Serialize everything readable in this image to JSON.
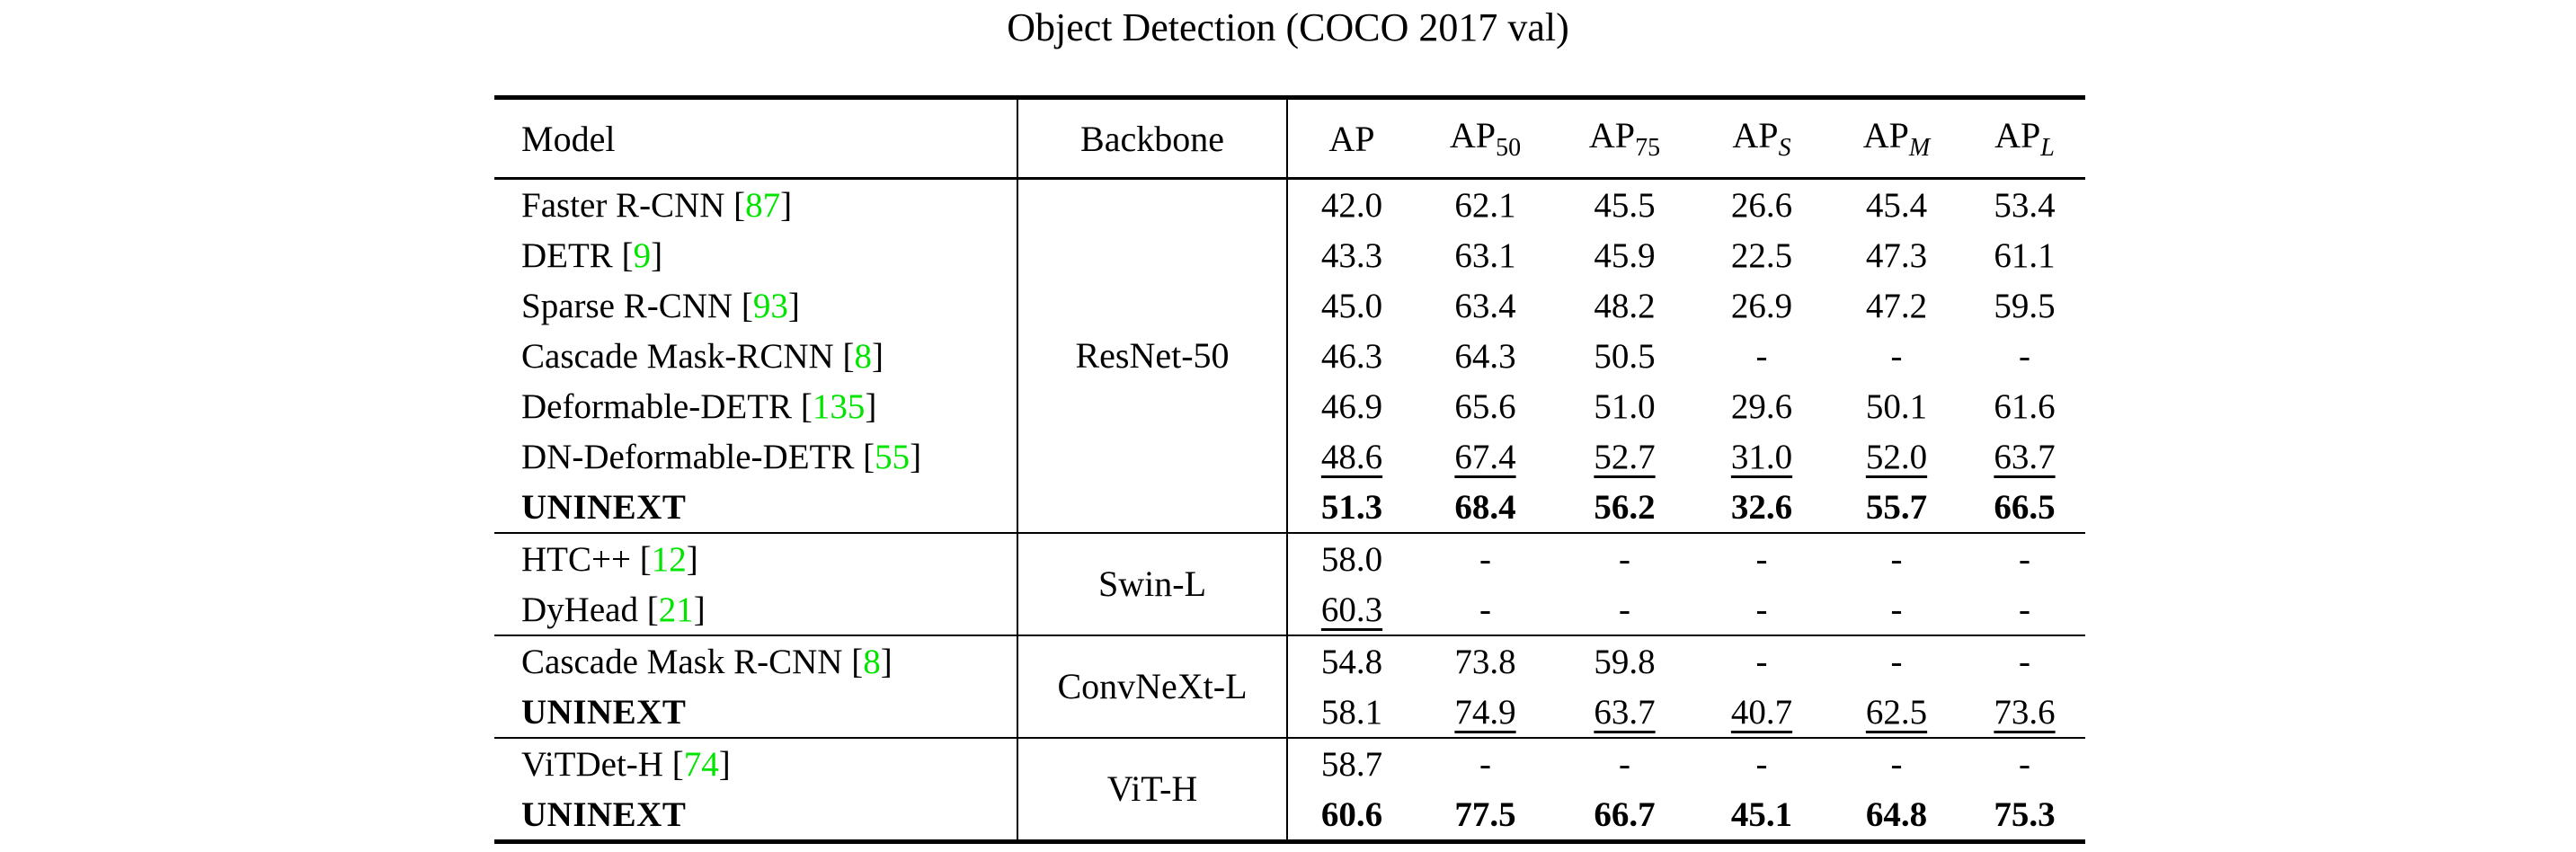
{
  "title": "Object Detection (COCO 2017 val)",
  "colors": {
    "citation_green": "#00E400",
    "text": "#000000",
    "background": "#ffffff"
  },
  "chart_data": {
    "type": "table",
    "title": "Object Detection (COCO 2017 val)",
    "columns": [
      "Model",
      "Backbone",
      "AP",
      "AP50",
      "AP75",
      "APS",
      "APM",
      "APL"
    ],
    "rows": [
      [
        "Faster R-CNN [87]",
        "ResNet-50",
        "42.0",
        "62.1",
        "45.5",
        "26.6",
        "45.4",
        "53.4"
      ],
      [
        "DETR [9]",
        "ResNet-50",
        "43.3",
        "63.1",
        "45.9",
        "22.5",
        "47.3",
        "61.1"
      ],
      [
        "Sparse R-CNN [93]",
        "ResNet-50",
        "45.0",
        "63.4",
        "48.2",
        "26.9",
        "47.2",
        "59.5"
      ],
      [
        "Cascade Mask-RCNN [8]",
        "ResNet-50",
        "46.3",
        "64.3",
        "50.5",
        "-",
        "-",
        "-"
      ],
      [
        "Deformable-DETR [135]",
        "ResNet-50",
        "46.9",
        "65.6",
        "51.0",
        "29.6",
        "50.1",
        "61.6"
      ],
      [
        "DN-Deformable-DETR [55]",
        "ResNet-50",
        "48.6",
        "67.4",
        "52.7",
        "31.0",
        "52.0",
        "63.7"
      ],
      [
        "UNINEXT",
        "ResNet-50",
        "51.3",
        "68.4",
        "56.2",
        "32.6",
        "55.7",
        "66.5"
      ],
      [
        "HTC++ [12]",
        "Swin-L",
        "58.0",
        "-",
        "-",
        "-",
        "-",
        "-"
      ],
      [
        "DyHead [21]",
        "Swin-L",
        "60.3",
        "-",
        "-",
        "-",
        "-",
        "-"
      ],
      [
        "Cascade Mask R-CNN [8]",
        "ConvNeXt-L",
        "54.8",
        "73.8",
        "59.8",
        "-",
        "-",
        "-"
      ],
      [
        "UNINEXT",
        "ConvNeXt-L",
        "58.1",
        "74.9",
        "63.7",
        "40.7",
        "62.5",
        "73.6"
      ],
      [
        "ViTDet-H [74]",
        "ViT-H",
        "58.7",
        "-",
        "-",
        "-",
        "-",
        "-"
      ],
      [
        "UNINEXT",
        "ViT-H",
        "60.6",
        "77.5",
        "66.7",
        "45.1",
        "64.8",
        "75.3"
      ]
    ]
  },
  "table": {
    "cite_brackets": [
      "[",
      "]"
    ],
    "headers": {
      "model": "Model",
      "backbone": "Backbone",
      "metrics": [
        {
          "base": "AP",
          "sub": "",
          "sub_style": "normal"
        },
        {
          "base": "AP",
          "sub": "50",
          "sub_style": "normal"
        },
        {
          "base": "AP",
          "sub": "75",
          "sub_style": "normal"
        },
        {
          "base": "AP",
          "sub": "S",
          "sub_style": "italic"
        },
        {
          "base": "AP",
          "sub": "M",
          "sub_style": "italic"
        },
        {
          "base": "AP",
          "sub": "L",
          "sub_style": "italic"
        }
      ]
    },
    "blocks": [
      {
        "backbone": "ResNet-50",
        "rows": [
          {
            "model": "Faster R-CNN",
            "cite": "87",
            "model_bold": false,
            "values": [
              {
                "t": "42.0",
                "s": "p"
              },
              {
                "t": "62.1",
                "s": "p"
              },
              {
                "t": "45.5",
                "s": "p"
              },
              {
                "t": "26.6",
                "s": "p"
              },
              {
                "t": "45.4",
                "s": "p"
              },
              {
                "t": "53.4",
                "s": "p"
              }
            ]
          },
          {
            "model": "DETR",
            "cite": "9",
            "model_bold": false,
            "values": [
              {
                "t": "43.3",
                "s": "p"
              },
              {
                "t": "63.1",
                "s": "p"
              },
              {
                "t": "45.9",
                "s": "p"
              },
              {
                "t": "22.5",
                "s": "p"
              },
              {
                "t": "47.3",
                "s": "p"
              },
              {
                "t": "61.1",
                "s": "p"
              }
            ]
          },
          {
            "model": "Sparse R-CNN",
            "cite": "93",
            "model_bold": false,
            "values": [
              {
                "t": "45.0",
                "s": "p"
              },
              {
                "t": "63.4",
                "s": "p"
              },
              {
                "t": "48.2",
                "s": "p"
              },
              {
                "t": "26.9",
                "s": "p"
              },
              {
                "t": "47.2",
                "s": "p"
              },
              {
                "t": "59.5",
                "s": "p"
              }
            ]
          },
          {
            "model": "Cascade Mask-RCNN",
            "cite": "8",
            "model_bold": false,
            "values": [
              {
                "t": "46.3",
                "s": "p"
              },
              {
                "t": "64.3",
                "s": "p"
              },
              {
                "t": "50.5",
                "s": "p"
              },
              {
                "t": "-",
                "s": "p"
              },
              {
                "t": "-",
                "s": "p"
              },
              {
                "t": "-",
                "s": "p"
              }
            ]
          },
          {
            "model": "Deformable-DETR",
            "cite": "135",
            "model_bold": false,
            "values": [
              {
                "t": "46.9",
                "s": "p"
              },
              {
                "t": "65.6",
                "s": "p"
              },
              {
                "t": "51.0",
                "s": "p"
              },
              {
                "t": "29.6",
                "s": "p"
              },
              {
                "t": "50.1",
                "s": "p"
              },
              {
                "t": "61.6",
                "s": "p"
              }
            ]
          },
          {
            "model": "DN-Deformable-DETR",
            "cite": "55",
            "model_bold": false,
            "values": [
              {
                "t": "48.6",
                "s": "u"
              },
              {
                "t": "67.4",
                "s": "u"
              },
              {
                "t": "52.7",
                "s": "u"
              },
              {
                "t": "31.0",
                "s": "u"
              },
              {
                "t": "52.0",
                "s": "u"
              },
              {
                "t": "63.7",
                "s": "u"
              }
            ]
          },
          {
            "model": "UNINEXT",
            "cite": null,
            "model_bold": true,
            "values": [
              {
                "t": "51.3",
                "s": "b"
              },
              {
                "t": "68.4",
                "s": "b"
              },
              {
                "t": "56.2",
                "s": "b"
              },
              {
                "t": "32.6",
                "s": "b"
              },
              {
                "t": "55.7",
                "s": "b"
              },
              {
                "t": "66.5",
                "s": "b"
              }
            ]
          }
        ]
      },
      {
        "backbone": "Swin-L",
        "rows": [
          {
            "model": "HTC++",
            "cite": "12",
            "model_bold": false,
            "values": [
              {
                "t": "58.0",
                "s": "p"
              },
              {
                "t": "-",
                "s": "p"
              },
              {
                "t": "-",
                "s": "p"
              },
              {
                "t": "-",
                "s": "p"
              },
              {
                "t": "-",
                "s": "p"
              },
              {
                "t": "-",
                "s": "p"
              }
            ]
          },
          {
            "model": "DyHead",
            "cite": "21",
            "model_bold": false,
            "values": [
              {
                "t": "60.3",
                "s": "u"
              },
              {
                "t": "-",
                "s": "p"
              },
              {
                "t": "-",
                "s": "p"
              },
              {
                "t": "-",
                "s": "p"
              },
              {
                "t": "-",
                "s": "p"
              },
              {
                "t": "-",
                "s": "p"
              }
            ]
          }
        ]
      },
      {
        "backbone": "ConvNeXt-L",
        "rows": [
          {
            "model": "Cascade Mask R-CNN",
            "cite": "8",
            "model_bold": false,
            "values": [
              {
                "t": "54.8",
                "s": "p"
              },
              {
                "t": "73.8",
                "s": "p"
              },
              {
                "t": "59.8",
                "s": "p"
              },
              {
                "t": "-",
                "s": "p"
              },
              {
                "t": "-",
                "s": "p"
              },
              {
                "t": "-",
                "s": "p"
              }
            ]
          },
          {
            "model": "UNINEXT",
            "cite": null,
            "model_bold": true,
            "values": [
              {
                "t": "58.1",
                "s": "p"
              },
              {
                "t": "74.9",
                "s": "u"
              },
              {
                "t": "63.7",
                "s": "u"
              },
              {
                "t": "40.7",
                "s": "u"
              },
              {
                "t": "62.5",
                "s": "u"
              },
              {
                "t": "73.6",
                "s": "u"
              }
            ]
          }
        ]
      },
      {
        "backbone": "ViT-H",
        "rows": [
          {
            "model": "ViTDet-H",
            "cite": "74",
            "model_bold": false,
            "values": [
              {
                "t": "58.7",
                "s": "p"
              },
              {
                "t": "-",
                "s": "p"
              },
              {
                "t": "-",
                "s": "p"
              },
              {
                "t": "-",
                "s": "p"
              },
              {
                "t": "-",
                "s": "p"
              },
              {
                "t": "-",
                "s": "p"
              }
            ]
          },
          {
            "model": "UNINEXT",
            "cite": null,
            "model_bold": true,
            "values": [
              {
                "t": "60.6",
                "s": "b"
              },
              {
                "t": "77.5",
                "s": "b"
              },
              {
                "t": "66.7",
                "s": "b"
              },
              {
                "t": "45.1",
                "s": "b"
              },
              {
                "t": "64.8",
                "s": "b"
              },
              {
                "t": "75.3",
                "s": "b"
              }
            ]
          }
        ]
      }
    ]
  }
}
